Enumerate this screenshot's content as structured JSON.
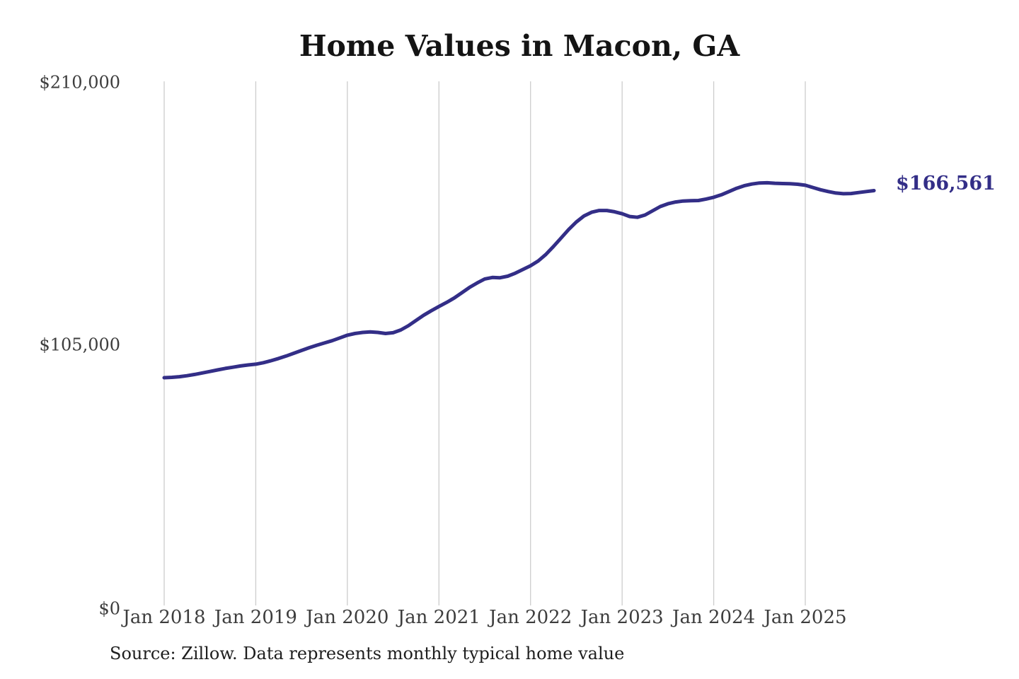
{
  "page": {
    "background": "#ffffff"
  },
  "chart_data": {
    "type": "line",
    "title": "Home Values in Macon, GA",
    "source_note": "Source: Zillow. Data represents monthly typical home value",
    "end_label": "$166,561",
    "final_value": 166561,
    "frequency": "monthly",
    "x_start": "Jan 2018",
    "x_end": "Oct 2025",
    "xlabel": "",
    "ylabel": "",
    "ylim": [
      0,
      210000
    ],
    "grid": "vertical-only",
    "legend": "none",
    "colors": {
      "line": "#332e87",
      "grid": "#cccccc",
      "axis_text": "#3d3d3d",
      "title_text": "#141414",
      "source_text": "#1e1e1e",
      "background": "#ffffff"
    },
    "x_tick_labels": [
      "Jan 2018",
      "Jan 2019",
      "Jan 2020",
      "Jan 2021",
      "Jan 2022",
      "Jan 2023",
      "Jan 2024",
      "Jan 2025"
    ],
    "y_ticks": [
      {
        "value": 210000,
        "label": "$210,000"
      },
      {
        "value": 105000,
        "label": "$105,000"
      },
      {
        "value": 0,
        "label": "$0"
      }
    ],
    "values": [
      91700,
      91850,
      92100,
      92500,
      93000,
      93600,
      94200,
      94800,
      95400,
      95900,
      96400,
      96800,
      97100,
      97700,
      98500,
      99400,
      100400,
      101500,
      102600,
      103700,
      104700,
      105600,
      106500,
      107600,
      108700,
      109400,
      109800,
      110000,
      109800,
      109400,
      109700,
      110800,
      112500,
      114600,
      116700,
      118500,
      120200,
      121800,
      123600,
      125700,
      127800,
      129600,
      131200,
      131800,
      131700,
      132300,
      133500,
      135000,
      136500,
      138400,
      141000,
      144200,
      147600,
      151000,
      154000,
      156400,
      157900,
      158600,
      158600,
      158100,
      157300,
      156200,
      155900,
      156800,
      158500,
      160200,
      161300,
      162000,
      162400,
      162500,
      162600,
      163200,
      163900,
      164900,
      166200,
      167500,
      168500,
      169200,
      169600,
      169700,
      169500,
      169400,
      169300,
      169100,
      168700,
      167800,
      166900,
      166200,
      165600,
      165300,
      165400,
      165800,
      166200,
      166561
    ]
  }
}
